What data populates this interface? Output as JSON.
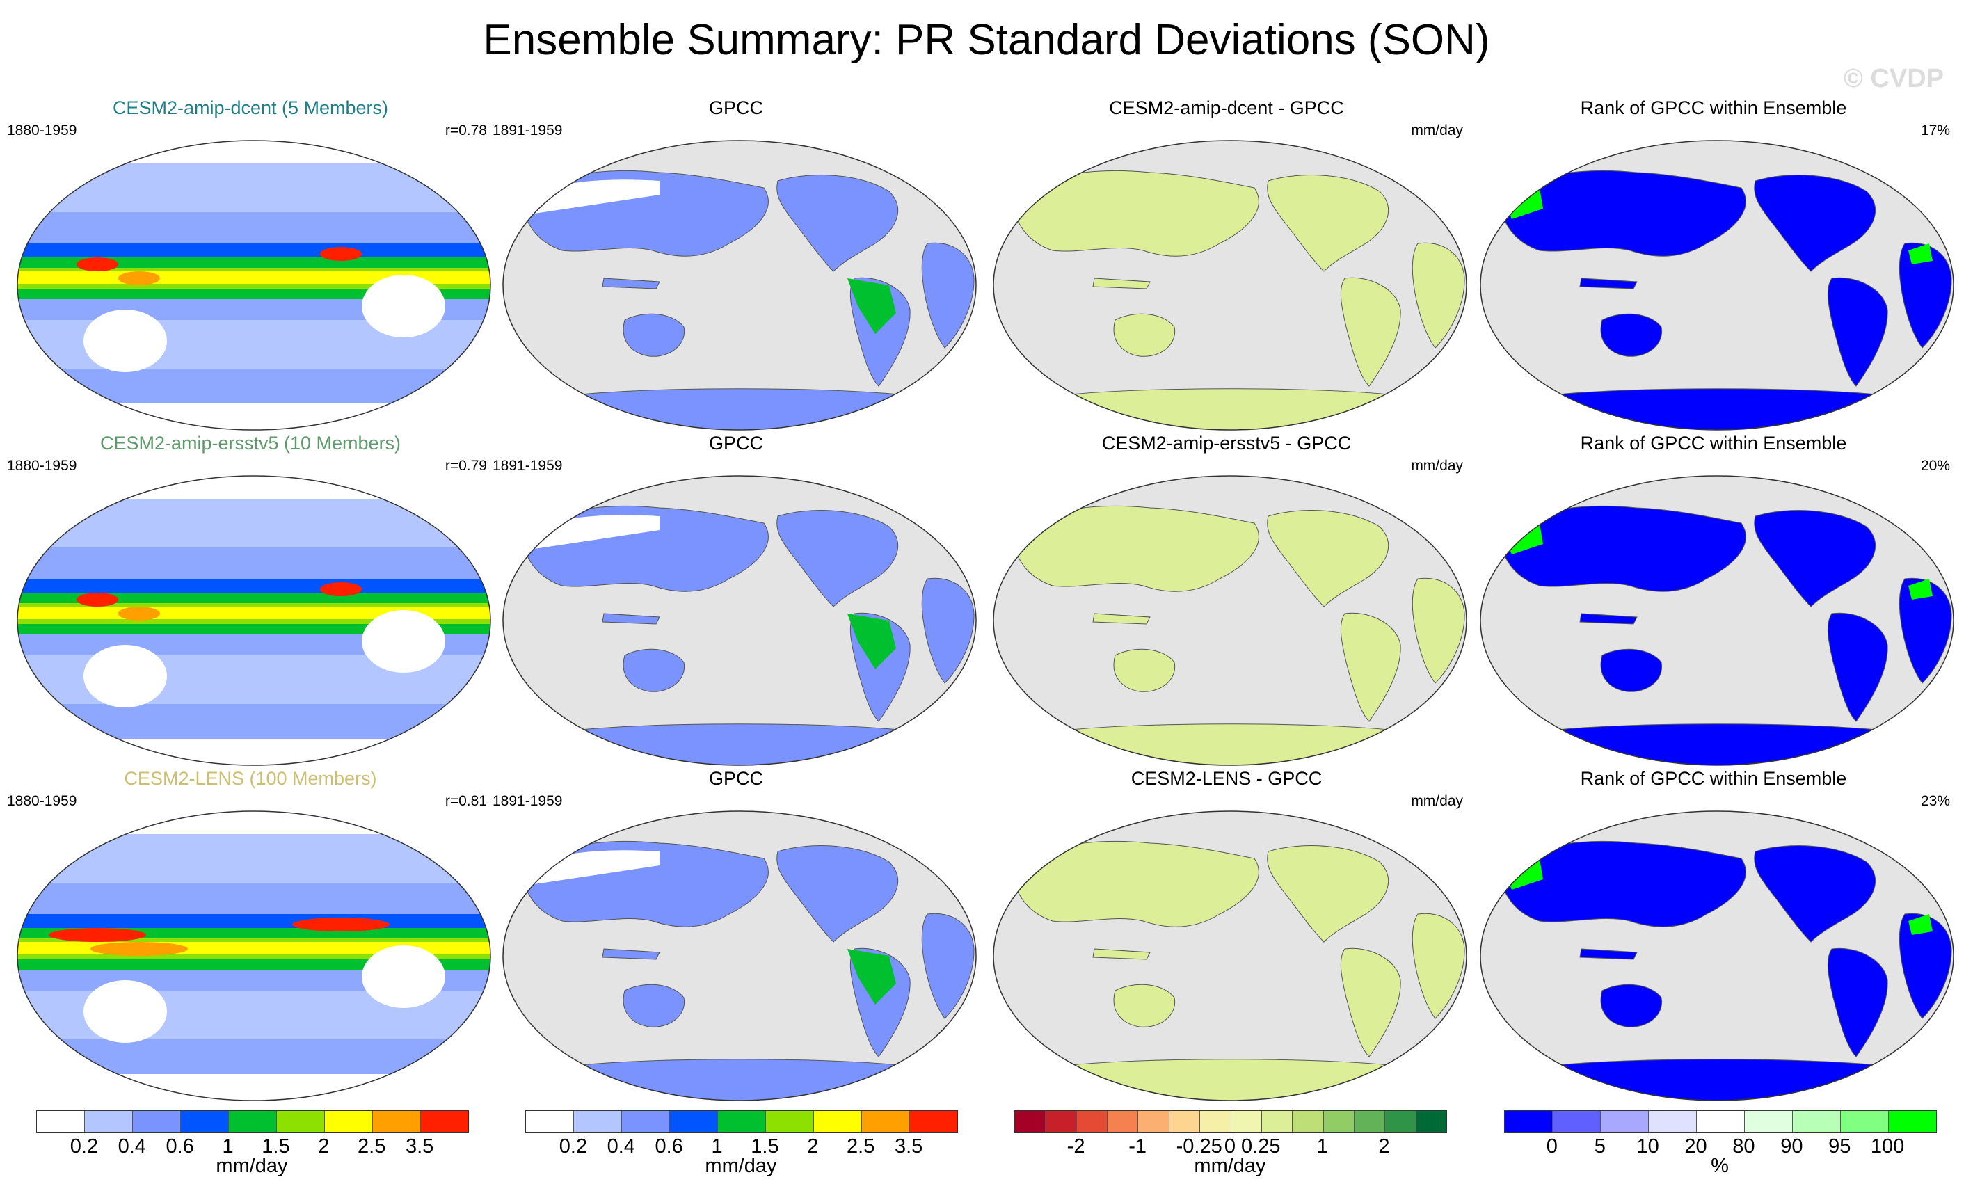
{
  "title": "Ensemble Summary: PR Standard Deviations (SON)",
  "watermark": "© CVDP",
  "rows": [
    {
      "model_title": "CESM2-amip-dcent (5 Members)",
      "model_color": "#1f7f86",
      "model_years": "1880-1959",
      "model_r": "r=0.78",
      "obs_title": "GPCC",
      "obs_years": "1891-1959",
      "diff_title": "CESM2-amip-dcent - GPCC",
      "diff_unit": "mm/day",
      "rank_title": "Rank of GPCC within Ensemble",
      "rank_pct": "17%"
    },
    {
      "model_title": "CESM2-amip-ersstv5 (10 Members)",
      "model_color": "#5d9a6a",
      "model_years": "1880-1959",
      "model_r": "r=0.79",
      "obs_title": "GPCC",
      "obs_years": "1891-1959",
      "diff_title": "CESM2-amip-ersstv5 - GPCC",
      "diff_unit": "mm/day",
      "rank_title": "Rank of GPCC within Ensemble",
      "rank_pct": "20%"
    },
    {
      "model_title": "CESM2-LENS (100 Members)",
      "model_color": "#cdbf72",
      "model_years": "1880-1959",
      "model_r": "r=0.81",
      "obs_title": "GPCC",
      "obs_years": "1891-1959",
      "diff_title": "CESM2-LENS - GPCC",
      "diff_unit": "mm/day",
      "rank_title": "Rank of GPCC within Ensemble",
      "rank_pct": "23%"
    }
  ],
  "colorbars": [
    {
      "colors": [
        "#ffffff",
        "#b4c6ff",
        "#7a93ff",
        "#0055ff",
        "#00c030",
        "#8ee000",
        "#ffff00",
        "#ffa000",
        "#ff2000"
      ],
      "ticks": [
        "0.2",
        "0.4",
        "0.6",
        "1",
        "1.5",
        "2",
        "2.5",
        "3.5"
      ],
      "unit": "mm/day"
    },
    {
      "colors": [
        "#ffffff",
        "#b4c6ff",
        "#7a93ff",
        "#0055ff",
        "#00c030",
        "#8ee000",
        "#ffff00",
        "#ffa000",
        "#ff2000"
      ],
      "ticks": [
        "0.2",
        "0.4",
        "0.6",
        "1",
        "1.5",
        "2",
        "2.5",
        "3.5"
      ],
      "unit": "mm/day"
    },
    {
      "colors": [
        "#a50026",
        "#c8202a",
        "#e54a35",
        "#f58050",
        "#fbb072",
        "#fdd490",
        "#f5efa8",
        "#f0f5b0",
        "#dcee98",
        "#bedf78",
        "#91cc64",
        "#62b257",
        "#2f9447",
        "#006a36"
      ],
      "ticks": [
        "-2",
        "-1",
        "-0.25",
        "0",
        "0.25",
        "1",
        "2"
      ],
      "unit": "mm/day"
    },
    {
      "colors": [
        "#0000ff",
        "#6060ff",
        "#a8a8ff",
        "#e0e0ff",
        "#ffffff",
        "#e0ffe0",
        "#b8ffb8",
        "#80ff80",
        "#00ff00"
      ],
      "ticks": [
        "0",
        "5",
        "10",
        "20",
        "80",
        "90",
        "95",
        "100"
      ],
      "unit": "%"
    }
  ]
}
